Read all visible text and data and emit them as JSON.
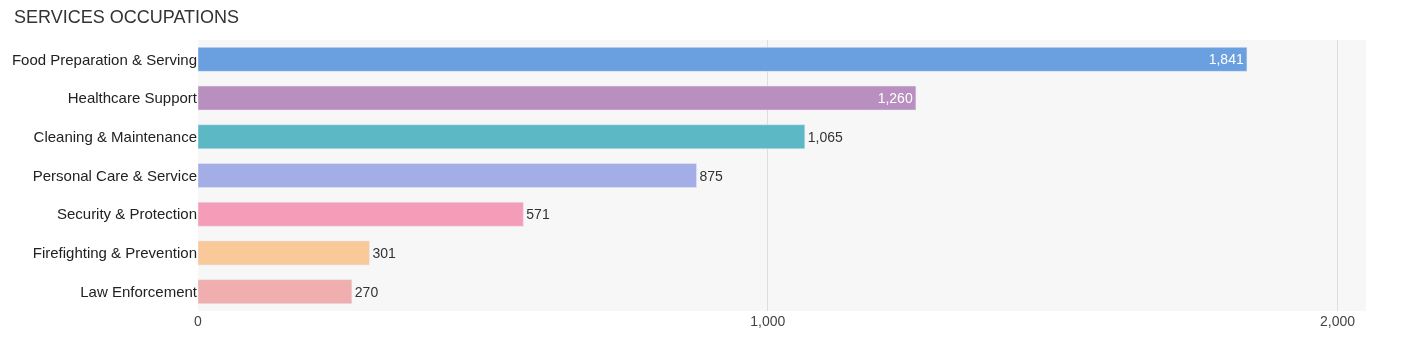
{
  "chart_data": {
    "type": "bar",
    "orientation": "horizontal",
    "title": "SERVICES OCCUPATIONS",
    "categories": [
      "Food Preparation & Serving",
      "Healthcare Support",
      "Cleaning & Maintenance",
      "Personal Care & Service",
      "Security & Protection",
      "Firefighting & Prevention",
      "Law Enforcement"
    ],
    "values": [
      1841,
      1260,
      1065,
      875,
      571,
      301,
      270
    ],
    "value_labels": [
      "1,841",
      "1,260",
      "1,065",
      "875",
      "571",
      "301",
      "270"
    ],
    "colors": [
      "#6a9fe0",
      "#b98fc0",
      "#5bb8c4",
      "#a3aee6",
      "#f49cb8",
      "#f9c99a",
      "#f0aeae"
    ],
    "xlim": [
      0,
      2050
    ],
    "xticks": [
      0,
      {
        "value": 1000,
        "label": "1,000"
      },
      {
        "value": 2000,
        "label": "2,000"
      }
    ],
    "grid": "x"
  }
}
